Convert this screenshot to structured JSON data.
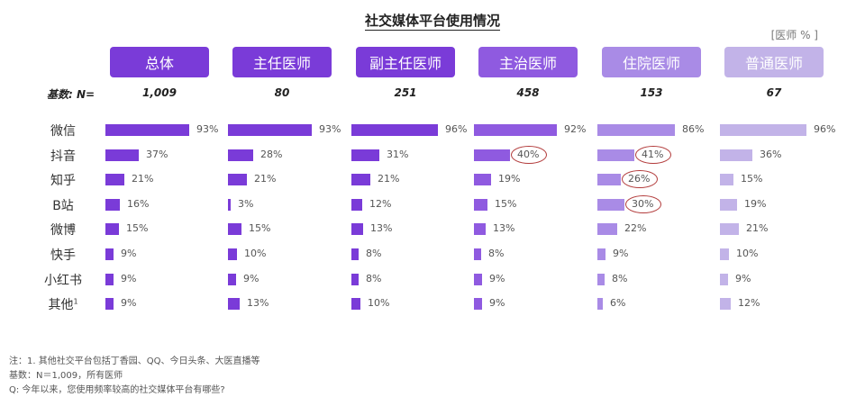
{
  "title": "社交媒体平台使用情况",
  "unit": "[医师 % ]",
  "base_label": "基数: N=",
  "chart_data": {
    "type": "bar",
    "title": "社交媒体平台使用情况",
    "unit": "[医师 % ]",
    "categories": [
      "微信",
      "抖音",
      "知乎",
      "B站",
      "微博",
      "快手",
      "小红书",
      "其他"
    ],
    "category_footnote": {
      "index": 7,
      "mark": "1"
    },
    "groups": [
      {
        "name": "总体",
        "base": "1,009",
        "values": [
          93,
          37,
          21,
          16,
          15,
          9,
          9,
          9
        ]
      },
      {
        "name": "主任医师",
        "base": "80",
        "values": [
          93,
          28,
          21,
          3,
          15,
          10,
          9,
          13
        ]
      },
      {
        "name": "副主任医师",
        "base": "251",
        "values": [
          96,
          31,
          21,
          12,
          13,
          8,
          8,
          10
        ]
      },
      {
        "name": "主治医师",
        "base": "458",
        "values": [
          92,
          40,
          19,
          15,
          13,
          8,
          9,
          9
        ]
      },
      {
        "name": "住院医师",
        "base": "153",
        "values": [
          86,
          41,
          26,
          30,
          22,
          9,
          8,
          6
        ]
      },
      {
        "name": "普通医师",
        "base": "67",
        "values": [
          96,
          36,
          15,
          19,
          21,
          10,
          9,
          12
        ]
      }
    ],
    "highlighted": [
      {
        "group": 3,
        "category": 1
      },
      {
        "group": 4,
        "category": 1
      },
      {
        "group": 4,
        "category": 2
      },
      {
        "group": 4,
        "category": 3
      }
    ],
    "value_suffix": "%",
    "colors": {
      "header": [
        "#7a3bd8",
        "#7a3bd8",
        "#7a3bd8",
        "#8f5ae0",
        "#a98be6",
        "#c2b3e8"
      ],
      "bar": [
        "#7a3bd8",
        "#7a3bd8",
        "#7a3bd8",
        "#8f5ae0",
        "#a98be6",
        "#c2b3e8"
      ],
      "highlight_circle": "#b23a3a"
    }
  },
  "notes": [
    "注：1. 其他社交平台包括丁香园、QQ、今日头条、大医直播等",
    "基数：N＝1,009，所有医师",
    "Q: 今年以来，您使用频率较高的社交媒体平台有哪些?"
  ]
}
